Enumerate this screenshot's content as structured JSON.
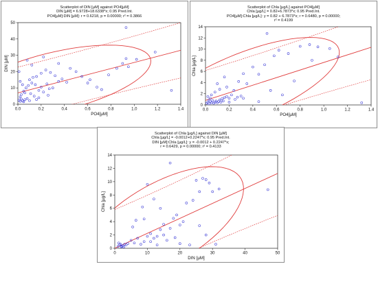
{
  "chart_data": [
    {
      "type": "scatter",
      "title": "Scatterplot of DIN [µM] against PO4[µM]",
      "subtitle_lines": [
        "DIN [µM] = 6.9728+18.6338*x; 0.95 Pred.Int.",
        "PO4[µM]:DIN [µM]:   r = 0.6218, p = 0.00000; r² = 0.3866"
      ],
      "xlabel": "PO4[µM]",
      "ylabel": "DIN [µM]",
      "xlim": [
        0,
        1.4
      ],
      "ylim": [
        0,
        50
      ],
      "xticks": [
        "0.0",
        "0.2",
        "0.4",
        "0.6",
        "0.8",
        "1.0",
        "1.2",
        "1.4"
      ],
      "yticks": [
        "0",
        "10",
        "20",
        "30",
        "40",
        "50"
      ],
      "regression": {
        "intercept": 6.9728,
        "slope": 18.6338
      },
      "points": [
        [
          0.01,
          2.5
        ],
        [
          0.02,
          1.8
        ],
        [
          0.03,
          3.2
        ],
        [
          0.04,
          2.1
        ],
        [
          0.05,
          1.5
        ],
        [
          0.02,
          4.5
        ],
        [
          0.06,
          2.8
        ],
        [
          0.08,
          3.5
        ],
        [
          0.1,
          2.2
        ],
        [
          0.03,
          6.0
        ],
        [
          0.05,
          8.0
        ],
        [
          0.07,
          10.0
        ],
        [
          0.09,
          11.5
        ],
        [
          0.12,
          13.0
        ],
        [
          0.15,
          12.0
        ],
        [
          0.18,
          8.5
        ],
        [
          0.2,
          10.5
        ],
        [
          0.22,
          7.5
        ],
        [
          0.25,
          12.5
        ],
        [
          0.27,
          9.5
        ],
        [
          0.1,
          15.0
        ],
        [
          0.13,
          16.5
        ],
        [
          0.16,
          17.0
        ],
        [
          0.2,
          19.0
        ],
        [
          0.24,
          21.0
        ],
        [
          0.28,
          19.5
        ],
        [
          0.32,
          17.5
        ],
        [
          0.35,
          14.0
        ],
        [
          0.38,
          15.5
        ],
        [
          0.42,
          13.5
        ],
        [
          0.45,
          22.0
        ],
        [
          0.5,
          20.0
        ],
        [
          0.55,
          17.0
        ],
        [
          0.6,
          13.0
        ],
        [
          0.62,
          15.0
        ],
        [
          0.68,
          10.5
        ],
        [
          0.72,
          9.0
        ],
        [
          0.78,
          18.0
        ],
        [
          0.85,
          22.0
        ],
        [
          0.9,
          25.0
        ],
        [
          0.93,
          28.0
        ],
        [
          0.95,
          23.0
        ],
        [
          1.02,
          27.5
        ],
        [
          1.18,
          32.0
        ],
        [
          1.32,
          8.5
        ],
        [
          0.93,
          47.0
        ],
        [
          0.22,
          29.0
        ],
        [
          0.35,
          25.0
        ],
        [
          0.12,
          24.0
        ],
        [
          0.06,
          7.0
        ],
        [
          0.02,
          14.0
        ],
        [
          0.04,
          12.0
        ],
        [
          0.01,
          20.0
        ],
        [
          0.08,
          27.0
        ],
        [
          0.3,
          10.0
        ],
        [
          0.26,
          5.5
        ],
        [
          0.18,
          4.0
        ],
        [
          0.14,
          5.0
        ],
        [
          0.11,
          6.5
        ],
        [
          0.16,
          2.9
        ]
      ]
    },
    {
      "type": "scatter",
      "title": "Scatterplot of Chla [µg/L] against PO4[µM]",
      "subtitle_lines": [
        "Chla [µg/L] = 0.82+6.7873*x; 0.95 Pred.Int.",
        "PO4[µM]:Chla [µg/L]:   y = 0.82 + 6.7873*x;  r = 0.6480, p = 0.00000;",
        "r² = 0.4199"
      ],
      "xlabel": "PO4[µM]",
      "ylabel": "Chla [µg/L]",
      "xlim": [
        0,
        1.4
      ],
      "ylim": [
        0,
        14
      ],
      "xticks": [
        "0.0",
        "0.2",
        "0.4",
        "0.6",
        "0.8",
        "1.0",
        "1.2",
        "1.4"
      ],
      "yticks": [
        "0",
        "2",
        "4",
        "6",
        "8",
        "10",
        "12",
        "14"
      ],
      "regression": {
        "intercept": 0.82,
        "slope": 6.7873
      },
      "points": [
        [
          0.01,
          0.3
        ],
        [
          0.02,
          0.5
        ],
        [
          0.03,
          0.2
        ],
        [
          0.04,
          0.6
        ],
        [
          0.05,
          0.4
        ],
        [
          0.06,
          0.8
        ],
        [
          0.07,
          0.3
        ],
        [
          0.08,
          0.5
        ],
        [
          0.09,
          0.7
        ],
        [
          0.1,
          0.4
        ],
        [
          0.11,
          0.6
        ],
        [
          0.12,
          0.9
        ],
        [
          0.13,
          0.5
        ],
        [
          0.14,
          1.1
        ],
        [
          0.15,
          0.7
        ],
        [
          0.16,
          1.3
        ],
        [
          0.18,
          1.5
        ],
        [
          0.2,
          1.2
        ],
        [
          0.22,
          1.8
        ],
        [
          0.25,
          1.0
        ],
        [
          0.27,
          1.4
        ],
        [
          0.3,
          1.6
        ],
        [
          0.32,
          1.2
        ],
        [
          0.05,
          1.8
        ],
        [
          0.08,
          2.3
        ],
        [
          0.12,
          2.8
        ],
        [
          0.18,
          3.2
        ],
        [
          0.24,
          2.6
        ],
        [
          0.28,
          4.2
        ],
        [
          0.32,
          5.6
        ],
        [
          0.35,
          3.8
        ],
        [
          0.4,
          6.8
        ],
        [
          0.45,
          5.5
        ],
        [
          0.5,
          7.2
        ],
        [
          0.52,
          12.8
        ],
        [
          0.58,
          8.8
        ],
        [
          0.62,
          9.8
        ],
        [
          0.7,
          9.2
        ],
        [
          0.75,
          4.3
        ],
        [
          0.8,
          10.5
        ],
        [
          0.88,
          10.8
        ],
        [
          0.9,
          8.0
        ],
        [
          0.95,
          10.4
        ],
        [
          1.05,
          10.1
        ],
        [
          1.12,
          8.6
        ],
        [
          1.32,
          0.4
        ],
        [
          0.1,
          3.8
        ],
        [
          0.16,
          5.0
        ],
        [
          0.04,
          1.2
        ],
        [
          0.2,
          0.5
        ],
        [
          0.55,
          2.6
        ],
        [
          0.45,
          0.6
        ],
        [
          0.65,
          1.8
        ],
        [
          0.03,
          0.9
        ],
        [
          0.02,
          1.5
        ]
      ]
    },
    {
      "type": "scatter",
      "title": "Scatterplot of Chla [µg/L] against DIN [µM]",
      "subtitle_lines": [
        "Chla [µg/L] = -0.0012+0.2247*x; 0.95 Pred.Int.",
        "DIN [µM]:Chla [µg/L]:   y = -0.0012 + 0.2247*x;",
        "r = 0.6429, p = 0.00000; r² = 0.4133"
      ],
      "xlabel": "DIN [µM]",
      "ylabel": "Chla [µg/L]",
      "xlim": [
        0,
        50
      ],
      "ylim": [
        0,
        14
      ],
      "xticks": [
        "0",
        "10",
        "20",
        "30",
        "40",
        "50"
      ],
      "yticks": [
        "0",
        "2",
        "4",
        "6",
        "8",
        "10",
        "12",
        "14"
      ],
      "regression": {
        "intercept": -0.0012,
        "slope": 0.2247
      },
      "points": [
        [
          1.0,
          0.3
        ],
        [
          1.5,
          0.5
        ],
        [
          2.0,
          0.2
        ],
        [
          2.5,
          0.4
        ],
        [
          3.0,
          0.6
        ],
        [
          1.2,
          0.8
        ],
        [
          2.2,
          0.3
        ],
        [
          3.5,
          0.5
        ],
        [
          1.8,
          0.6
        ],
        [
          2.8,
          0.2
        ],
        [
          4.0,
          0.7
        ],
        [
          5.0,
          1.2
        ],
        [
          6.0,
          0.8
        ],
        [
          7.0,
          1.5
        ],
        [
          8.0,
          0.6
        ],
        [
          9.0,
          1.0
        ],
        [
          10.0,
          1.8
        ],
        [
          11.0,
          2.2
        ],
        [
          12.0,
          1.5
        ],
        [
          13.0,
          0.5
        ],
        [
          14.0,
          2.8
        ],
        [
          15.0,
          2.0
        ],
        [
          16.0,
          1.2
        ],
        [
          17.0,
          3.0
        ],
        [
          18.0,
          4.5
        ],
        [
          19.0,
          5.0
        ],
        [
          20.0,
          3.5
        ],
        [
          21.0,
          4.0
        ],
        [
          22.0,
          6.8
        ],
        [
          24.0,
          7.2
        ],
        [
          25.0,
          10.2
        ],
        [
          26.0,
          8.5
        ],
        [
          27.0,
          10.5
        ],
        [
          28.0,
          10.3
        ],
        [
          29.0,
          9.8
        ],
        [
          30.0,
          8.5
        ],
        [
          32.0,
          8.9
        ],
        [
          31.0,
          0.6
        ],
        [
          20.0,
          0.7
        ],
        [
          23.0,
          0.5
        ],
        [
          17.0,
          12.8
        ],
        [
          10.0,
          9.6
        ],
        [
          12.0,
          7.4
        ],
        [
          8.5,
          6.2
        ],
        [
          14.0,
          6.0
        ],
        [
          6.5,
          4.2
        ],
        [
          5.5,
          3.2
        ],
        [
          15.0,
          3.6
        ],
        [
          18.5,
          1.6
        ],
        [
          26.0,
          3.4
        ],
        [
          47.0,
          8.8
        ],
        [
          28.0,
          2.0
        ],
        [
          11.0,
          1.0
        ],
        [
          9.0,
          4.4
        ],
        [
          13.0,
          1.8
        ]
      ]
    }
  ]
}
